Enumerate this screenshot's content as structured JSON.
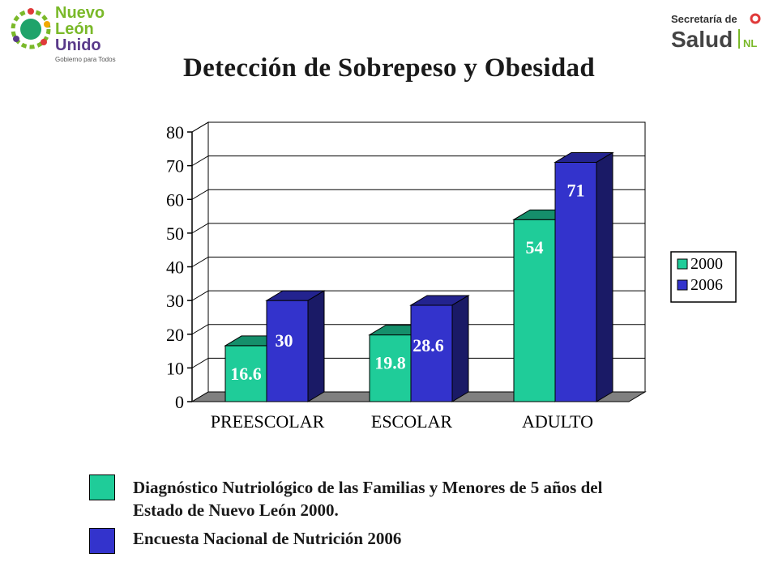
{
  "logos": {
    "left": {
      "line1": "Nuevo",
      "line2": "León",
      "line3": "Unido",
      "tagline": "Gobierno para Todos"
    },
    "right": {
      "line1": "Secretaría de",
      "line2": "Salud",
      "suffix": "NL"
    }
  },
  "colors": {
    "series_2000": "#1fcc99",
    "series_2006": "#3333cc",
    "brand_green": "#7ab929",
    "brand_purple": "#5a3a8a"
  },
  "chart_data": {
    "type": "bar",
    "title": "Detección de Sobrepeso y Obesidad",
    "categories": [
      "PREESCOLAR",
      "ESCOLAR",
      "ADULTO"
    ],
    "series": [
      {
        "name": "2000",
        "values": [
          16.6,
          19.8,
          54
        ],
        "labels": [
          "16.6",
          "19.8",
          "54"
        ]
      },
      {
        "name": "2006",
        "values": [
          30,
          28.6,
          71
        ],
        "labels": [
          "30",
          "28.6",
          "71"
        ]
      }
    ],
    "xlabel": "",
    "ylabel": "",
    "ylim": [
      0,
      80
    ],
    "yticks": [
      "0",
      "10",
      "20",
      "30",
      "40",
      "50",
      "60",
      "70",
      "80"
    ],
    "grid": true,
    "legend_position": "right",
    "style": "3d"
  },
  "notes": [
    {
      "text_line1": "Diagnóstico Nutriológico de las Familias y Menores de 5 años del",
      "text_line2": "Estado de Nuevo León 2000."
    },
    {
      "text_line1": "Encuesta Nacional de Nutrición 2006"
    }
  ]
}
